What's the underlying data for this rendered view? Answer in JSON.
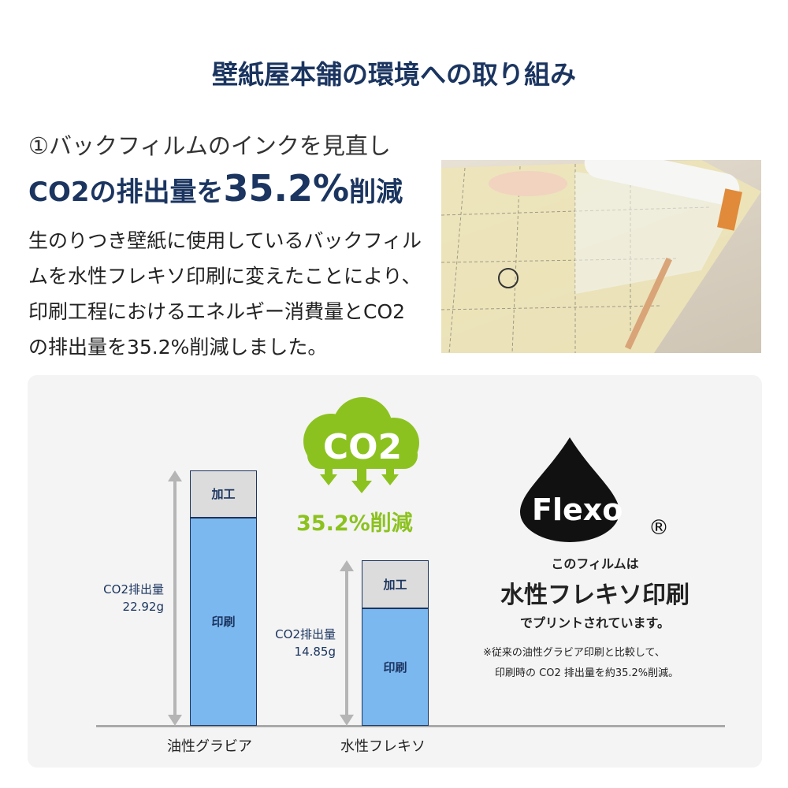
{
  "title": "壁紙屋本舗の環境への取り組み",
  "section": {
    "subtitle": "①バックフィルムのインクを見直し",
    "headline_pre": "CO2の排出量を",
    "headline_value": "35.2%",
    "headline_post": "削減",
    "body": "生のりつき壁紙に使用しているバックフィルムを水性フレキソ印刷に変えたことにより、印刷工程におけるエネルギー消費量とCO2の排出量を35.2%削減しました。"
  },
  "badge": {
    "co2": "CO2",
    "reduction": "35.2%削減",
    "color": "#8cc21f"
  },
  "flexo": {
    "logo": "Flexo",
    "registered": "®",
    "line1": "このフィルムは",
    "line2": "水性フレキソ印刷",
    "line3": "でプリントされています。",
    "note1": "※従来の油性グラビア印刷と比較して、",
    "note2": "印刷時の CO2 排出量を約35.2%削減。"
  },
  "chart_data": {
    "type": "bar",
    "stacked": true,
    "categories": [
      "油性グラビア",
      "水性フレキソ"
    ],
    "totals": [
      22.92,
      14.85
    ],
    "total_labels": [
      "CO2排出量\n22.92g",
      "CO2排出量\n14.85g"
    ],
    "total_label_title": "CO2排出量",
    "total_label_values": [
      "22.92g",
      "14.85g"
    ],
    "series": [
      {
        "name": "印刷",
        "values": [
          18.7,
          10.55
        ],
        "color": "#7cb8f0"
      },
      {
        "name": "加工",
        "values": [
          4.22,
          4.3
        ],
        "color": "#dcdcdc"
      }
    ],
    "ylim": [
      0,
      22.92
    ],
    "grid": false
  }
}
